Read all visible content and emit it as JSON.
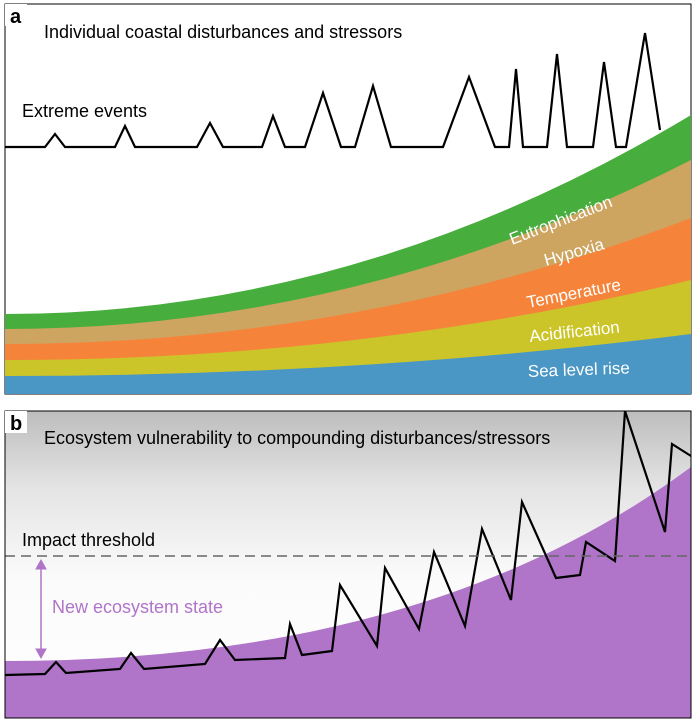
{
  "panel_a": {
    "letter": "a",
    "title": "Individual coastal disturbances and stressors",
    "extreme_label": "Extreme events",
    "bands": [
      {
        "label": "Eutrophication",
        "color": "#47ad3c"
      },
      {
        "label": "Hypoxia",
        "color": "#cda561"
      },
      {
        "label": "Temperature",
        "color": "#f5843a"
      },
      {
        "label": "Acidification",
        "color": "#cbc52a"
      },
      {
        "label": "Sea level rise",
        "color": "#4a96c4"
      }
    ],
    "label_color": "#ffffff",
    "line_color": "#000000"
  },
  "panel_b": {
    "letter": "b",
    "title": "Ecosystem vulnerability to compounding disturbances/stressors",
    "threshold_label": "Impact threshold",
    "state_label": "New ecosystem state",
    "state_color": "#b074c8",
    "fill_color": "#b074c8",
    "threshold_color": "#666666"
  }
}
